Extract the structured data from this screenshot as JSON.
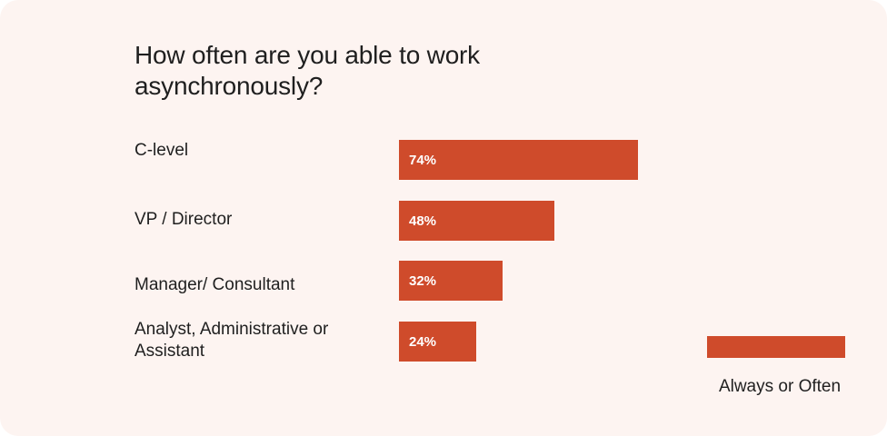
{
  "chart_data": {
    "type": "bar",
    "orientation": "horizontal",
    "title": "How often are you able to work asynchronously?",
    "categories": [
      "C-level",
      "VP / Director",
      "Manager/ Consultant",
      "Analyst, Administrative or Assistant"
    ],
    "series": [
      {
        "name": "Always or Often",
        "values": [
          74,
          48,
          32,
          24
        ],
        "labels": [
          "74%",
          "48%",
          "32%",
          "24%"
        ],
        "color": "#cf4b2b"
      }
    ],
    "unit": "%",
    "xlim": [
      0,
      100
    ],
    "grid": false,
    "legend_position": "bottom-right",
    "colors": {
      "background": "#fdf4f1",
      "bar": "#cf4b2b",
      "text": "#1f1f1f",
      "bar_label": "#ffffff"
    }
  }
}
